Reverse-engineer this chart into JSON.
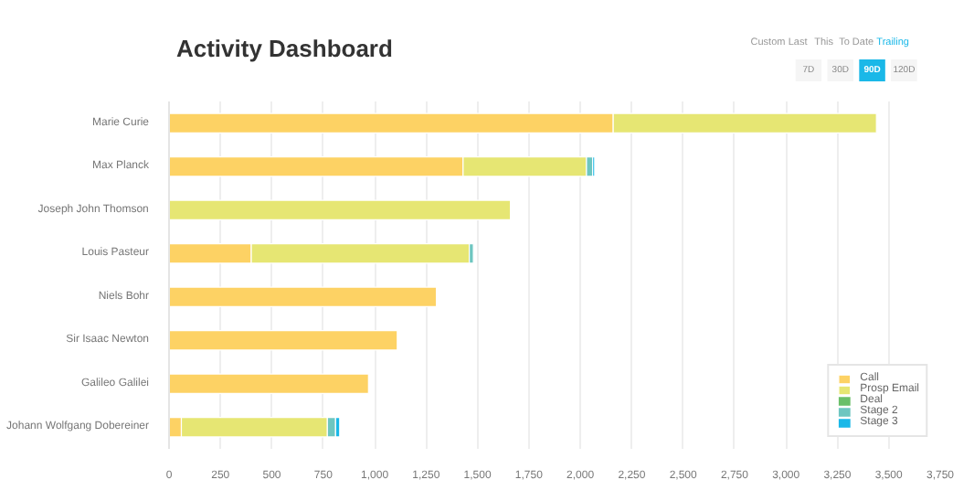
{
  "chart_data": {
    "type": "bar",
    "orientation": "horizontal",
    "stacked": true,
    "title": "Activity Dashboard",
    "categories": [
      "Marie Curie",
      "Max Planck",
      "Joseph John Thomson",
      "Louis Pasteur",
      "Niels Bohr",
      "Sir Isaac Newton",
      "Galileo Galilei",
      "Johann Wolfgang Dobereiner"
    ],
    "series": [
      {
        "name": "Call",
        "color": "#fdd264",
        "values": [
          2160,
          1430,
          0,
          400,
          1300,
          1110,
          970,
          60
        ]
      },
      {
        "name": "Prosp Email",
        "color": "#e6e673",
        "values": [
          1280,
          600,
          1660,
          1060,
          0,
          0,
          0,
          710
        ]
      },
      {
        "name": "Deal",
        "color": "#6abf69",
        "values": [
          0,
          0,
          0,
          0,
          0,
          0,
          0,
          0
        ]
      },
      {
        "name": "Stage 2",
        "color": "#6ec6c0",
        "values": [
          0,
          30,
          0,
          20,
          0,
          0,
          0,
          40
        ]
      },
      {
        "name": "Stage 3",
        "color": "#1ab8e8",
        "values": [
          0,
          10,
          0,
          0,
          0,
          0,
          0,
          20
        ]
      }
    ],
    "xlim": [
      0,
      3750
    ],
    "xticks": [
      0,
      250,
      500,
      750,
      {
        "value": 1000,
        "label": "1,000"
      },
      {
        "value": 1250,
        "label": "1,250"
      },
      {
        "value": 1500,
        "label": "1,500"
      },
      {
        "value": 1750,
        "label": "1,750"
      },
      {
        "value": 2000,
        "label": "2,000"
      },
      {
        "value": 2250,
        "label": "2,250"
      },
      {
        "value": 2500,
        "label": "2,500"
      },
      {
        "value": 2750,
        "label": "2,750"
      },
      {
        "value": 3000,
        "label": "3,000"
      },
      {
        "value": 3250,
        "label": "3,250"
      },
      {
        "value": 3500,
        "label": "3,500"
      },
      {
        "value": 3750,
        "label": "3,750"
      }
    ],
    "grid": "x",
    "legend": "bottom right",
    "annotations": [
      "Custom",
      "Last",
      "This",
      "To Date",
      "Trailing",
      "7D",
      "30D",
      "90D",
      "120D"
    ]
  }
}
